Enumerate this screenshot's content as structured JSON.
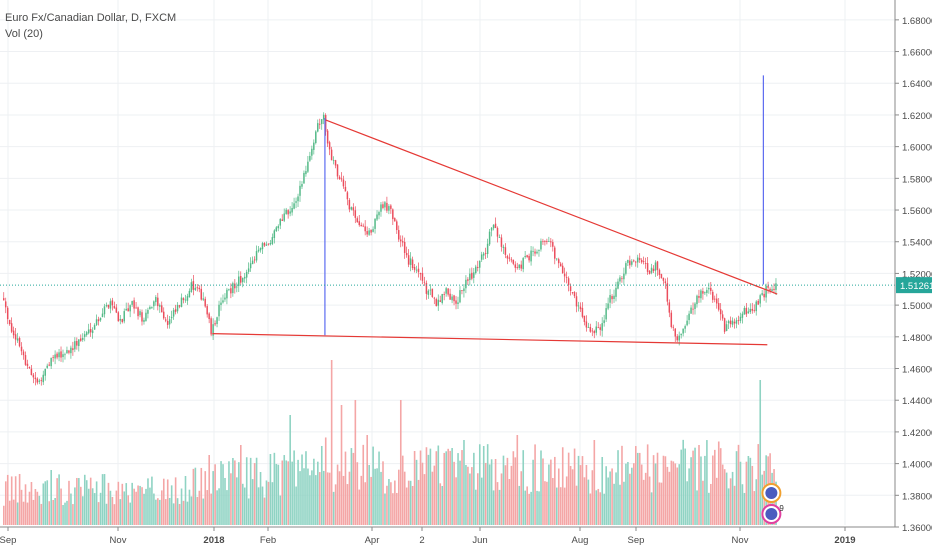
{
  "header": {
    "symbol": "Euro Fx/Canadian Dollar, D, FXCM",
    "volume": "Vol (20)"
  },
  "colors": {
    "up": "#53b987",
    "down": "#eb4d5c",
    "up_volume": "#8fd3c3",
    "down_volume": "#f4a6a6",
    "trendline": "#e53935",
    "measure": "#5c6bf0",
    "price_line": "#26a69a",
    "grid": "#eef0f3",
    "axis_text": "#4a4a4a"
  },
  "chart_data": {
    "type": "candlestick",
    "symbol": "EURCAD",
    "timeframe": "D",
    "ylim": [
      1.36,
      1.69
    ],
    "y_ticks": [
      "1.68000",
      "1.66000",
      "1.64000",
      "1.62000",
      "1.60000",
      "1.58000",
      "1.56000",
      "1.54000",
      "1.52000",
      "1.50000",
      "1.48000",
      "1.46000",
      "1.44000",
      "1.42000",
      "1.40000",
      "1.38000",
      "1.36000"
    ],
    "x_ticks": [
      "Sep",
      "Nov",
      "2018",
      "Feb",
      "Apr",
      "2",
      "Jun",
      "Aug",
      "Sep",
      "Nov",
      "2019"
    ],
    "last_price": "1.51261",
    "waypoints": [
      [
        0,
        1.505
      ],
      [
        5,
        1.485
      ],
      [
        12,
        1.465
      ],
      [
        18,
        1.45
      ],
      [
        25,
        1.465
      ],
      [
        32,
        1.47
      ],
      [
        40,
        1.478
      ],
      [
        48,
        1.49
      ],
      [
        55,
        1.503
      ],
      [
        60,
        1.49
      ],
      [
        66,
        1.5
      ],
      [
        72,
        1.49
      ],
      [
        78,
        1.505
      ],
      [
        84,
        1.488
      ],
      [
        90,
        1.5
      ],
      [
        96,
        1.512
      ],
      [
        102,
        1.505
      ],
      [
        106,
        1.483
      ],
      [
        112,
        1.505
      ],
      [
        118,
        1.513
      ],
      [
        124,
        1.52
      ],
      [
        130,
        1.535
      ],
      [
        136,
        1.54
      ],
      [
        142,
        1.555
      ],
      [
        148,
        1.565
      ],
      [
        152,
        1.578
      ],
      [
        156,
        1.592
      ],
      [
        160,
        1.612
      ],
      [
        163,
        1.618
      ],
      [
        166,
        1.598
      ],
      [
        170,
        1.582
      ],
      [
        173,
        1.575
      ],
      [
        176,
        1.562
      ],
      [
        180,
        1.555
      ],
      [
        184,
        1.545
      ],
      [
        188,
        1.548
      ],
      [
        192,
        1.563
      ],
      [
        196,
        1.562
      ],
      [
        200,
        1.548
      ],
      [
        205,
        1.53
      ],
      [
        210,
        1.522
      ],
      [
        215,
        1.51
      ],
      [
        220,
        1.502
      ],
      [
        225,
        1.508
      ],
      [
        230,
        1.502
      ],
      [
        235,
        1.515
      ],
      [
        240,
        1.522
      ],
      [
        245,
        1.535
      ],
      [
        248,
        1.55
      ],
      [
        251,
        1.545
      ],
      [
        255,
        1.532
      ],
      [
        260,
        1.522
      ],
      [
        265,
        1.528
      ],
      [
        270,
        1.535
      ],
      [
        275,
        1.542
      ],
      [
        278,
        1.538
      ],
      [
        282,
        1.525
      ],
      [
        286,
        1.515
      ],
      [
        290,
        1.505
      ],
      [
        295,
        1.49
      ],
      [
        300,
        1.482
      ],
      [
        304,
        1.488
      ],
      [
        308,
        1.505
      ],
      [
        312,
        1.512
      ],
      [
        316,
        1.525
      ],
      [
        320,
        1.53
      ],
      [
        324,
        1.528
      ],
      [
        328,
        1.522
      ],
      [
        332,
        1.525
      ],
      [
        336,
        1.512
      ],
      [
        339,
        1.488
      ],
      [
        342,
        1.478
      ],
      [
        346,
        1.485
      ],
      [
        350,
        1.5
      ],
      [
        354,
        1.508
      ],
      [
        358,
        1.51
      ],
      [
        362,
        1.5
      ],
      [
        366,
        1.485
      ],
      [
        370,
        1.49
      ],
      [
        375,
        1.495
      ],
      [
        380,
        1.497
      ],
      [
        385,
        1.505
      ],
      [
        388,
        1.512
      ]
    ],
    "volume_waypoints": [
      [
        0,
        42
      ],
      [
        40,
        45
      ],
      [
        80,
        40
      ],
      [
        110,
        55
      ],
      [
        140,
        62
      ],
      [
        160,
        75
      ],
      [
        175,
        70
      ],
      [
        200,
        65
      ],
      [
        240,
        70
      ],
      [
        280,
        68
      ],
      [
        300,
        65
      ],
      [
        340,
        72
      ],
      [
        388,
        70
      ]
    ],
    "volume_spikes": [
      [
        24,
        55
      ],
      [
        104,
        70
      ],
      [
        120,
        80
      ],
      [
        145,
        110
      ],
      [
        166,
        165
      ],
      [
        171,
        120
      ],
      [
        178,
        125
      ],
      [
        184,
        90
      ],
      [
        201,
        125
      ],
      [
        233,
        85
      ],
      [
        260,
        90
      ],
      [
        299,
        85
      ],
      [
        352,
        80
      ],
      [
        383,
        145
      ]
    ],
    "annotations": {
      "descending_trendline": [
        [
          163,
          1.617
        ],
        [
          392,
          1.507
        ]
      ],
      "support_line": [
        [
          106,
          1.482
        ],
        [
          387,
          1.475
        ]
      ],
      "triangle_height": [
        [
          163,
          1.618
        ],
        [
          163,
          1.481
        ]
      ],
      "projection": [
        [
          385,
          1.513
        ],
        [
          385,
          1.645
        ]
      ]
    },
    "volume_badge": "9"
  }
}
